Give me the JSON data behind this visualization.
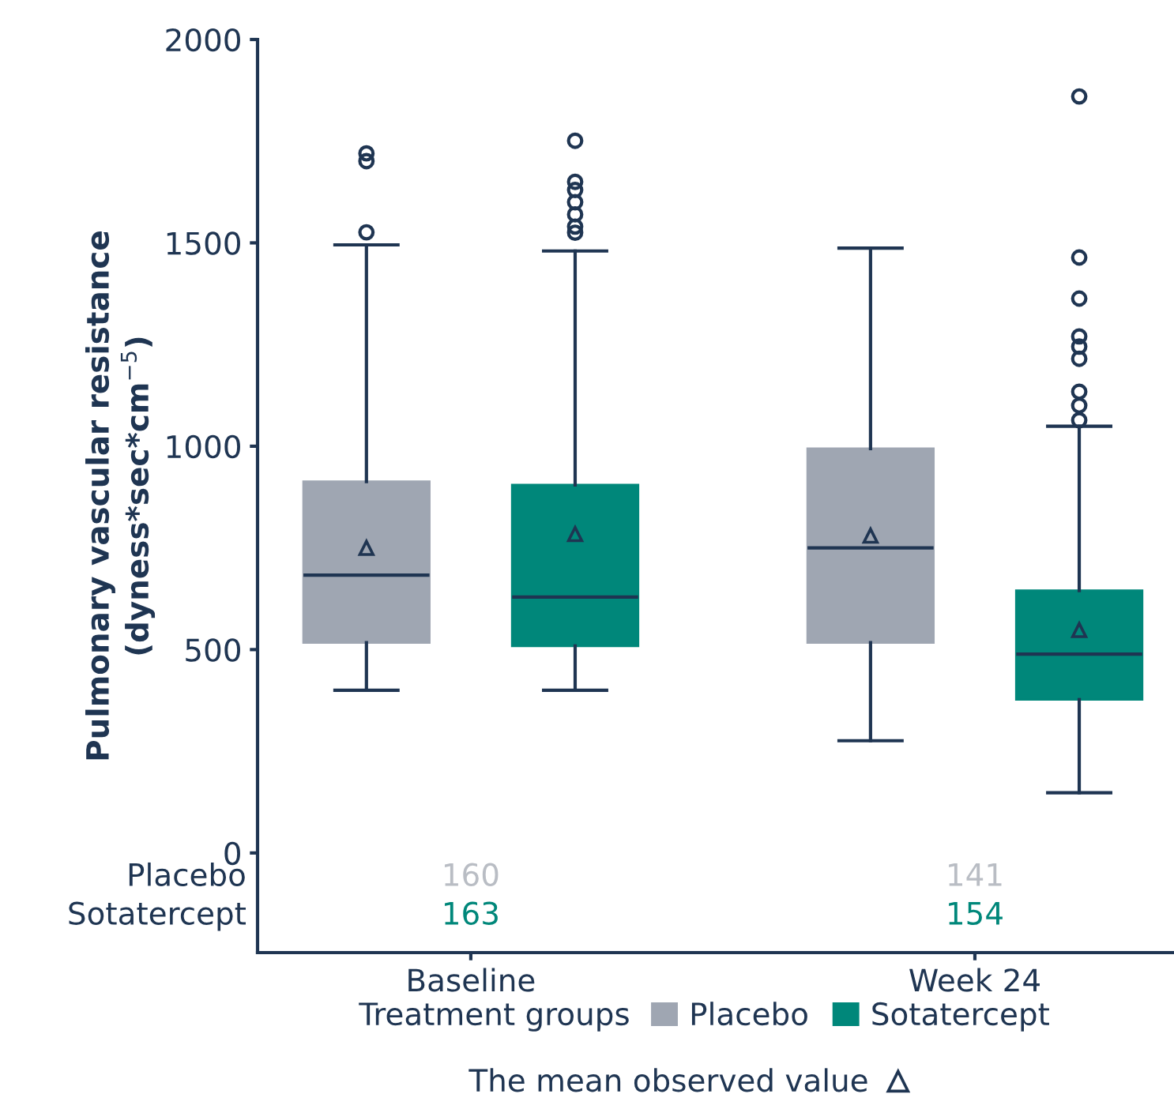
{
  "chart_data": {
    "type": "box",
    "ylabel": "Pulmonary vascular resistance\n(dyness*sec*cm$^{−5}$)",
    "legend_title": "Treatment groups",
    "legend": "bottom",
    "marker": "triangle",
    "categories": [
      "Baseline",
      "Week 24"
    ],
    "ylim": [
      -245,
      2000
    ],
    "yticks": [
      0,
      500,
      1000,
      1500,
      2000
    ],
    "series": [
      {
        "name": "Placebo",
        "color": "#9fa6b2",
        "boxes": [
          {
            "low": 400,
            "q1": 517,
            "median": 683,
            "q3": 913,
            "high": 1495,
            "mean": 750,
            "outliers": [
              1526,
              1701,
              1720
            ]
          },
          {
            "low": 276,
            "q1": 517,
            "median": 750,
            "q3": 994,
            "high": 1487,
            "mean": 780
          }
        ]
      },
      {
        "name": "Sotatercept",
        "color": "#00877a",
        "boxes": [
          {
            "low": 400,
            "q1": 509,
            "median": 629,
            "q3": 905,
            "high": 1480,
            "mean": 784,
            "outliers": [
              1525,
              1540,
              1570,
              1600,
              1630,
              1650,
              1751
            ]
          },
          {
            "low": 148,
            "q1": 377,
            "median": 489,
            "q3": 645,
            "high": 1049,
            "mean": 548,
            "outliers": [
              1064,
              1100,
              1134,
              1215,
              1245,
              1270,
              1363,
              1464,
              1860
            ]
          }
        ]
      }
    ],
    "annotations": [
      "Placebo",
      "160",
      "141",
      "Sotatercept",
      "163",
      "154",
      "The mean observed value"
    ]
  }
}
